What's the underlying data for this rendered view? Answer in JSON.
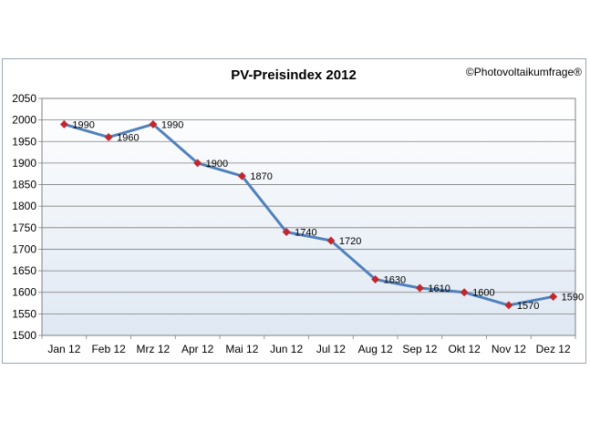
{
  "chart_data": {
    "type": "line",
    "title": "PV-Preisindex 2012",
    "copyright": "©Photovoltaikumfrage®",
    "categories": [
      "Jan 12",
      "Feb 12",
      "Mrz 12",
      "Apr 12",
      "Mai 12",
      "Jun 12",
      "Jul 12",
      "Aug 12",
      "Sep 12",
      "Okt 12",
      "Nov 12",
      "Dez 12"
    ],
    "series": [
      {
        "values": [
          1990,
          1960,
          1990,
          1900,
          1870,
          1740,
          1720,
          1630,
          1610,
          1600,
          1570,
          1590
        ]
      }
    ],
    "data_labels": [
      "1990",
      "1960",
      "1990",
      "1900",
      "1870",
      "1740",
      "1720",
      "1630",
      "1610",
      "1600",
      "1570",
      "1590"
    ],
    "ylim": [
      1500,
      2050
    ],
    "yticks": [
      1500,
      1550,
      1600,
      1650,
      1700,
      1750,
      1800,
      1850,
      1900,
      1950,
      2000,
      2050
    ],
    "ytick_labels": [
      "1500",
      "1550",
      "1600",
      "1650",
      "1700",
      "1750",
      "1800",
      "1850",
      "1900",
      "1950",
      "2000",
      "2050"
    ],
    "grid": true,
    "colors": {
      "line": "#4f81bd",
      "marker": "#c0282d",
      "plot_bg_top": "#ffffff",
      "plot_bg_bottom": "#dfe8f3",
      "gridline": "#7f7f7f"
    }
  }
}
